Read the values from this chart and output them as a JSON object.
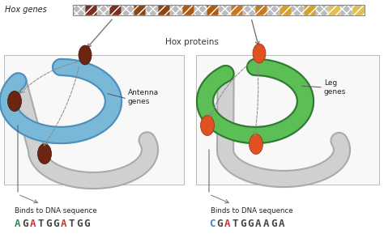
{
  "hox_label": "Hox genes",
  "hox_proteins_label": "Hox proteins",
  "left_label": "Antenna\ngenes",
  "right_label": "Leg\ngenes",
  "left_binds": "Binds to DNA sequence",
  "right_binds": "Binds to DNA sequence",
  "left_seq": [
    {
      "char": "A",
      "color": "#2E8B57"
    },
    {
      "char": "G",
      "color": "#444444"
    },
    {
      "char": "A",
      "color": "#CC3333"
    },
    {
      "char": "T",
      "color": "#444444"
    },
    {
      "char": "G",
      "color": "#444444"
    },
    {
      "char": "G",
      "color": "#444444"
    },
    {
      "char": "A",
      "color": "#CC3333"
    },
    {
      "char": "T",
      "color": "#444444"
    },
    {
      "char": "G",
      "color": "#444444"
    },
    {
      "char": "G",
      "color": "#444444"
    }
  ],
  "right_seq": [
    {
      "char": "C",
      "color": "#4080C0"
    },
    {
      "char": "G",
      "color": "#444444"
    },
    {
      "char": "A",
      "color": "#CC3333"
    },
    {
      "char": "T",
      "color": "#444444"
    },
    {
      "char": "G",
      "color": "#444444"
    },
    {
      "char": "G",
      "color": "#444444"
    },
    {
      "char": "A",
      "color": "#444444"
    },
    {
      "char": "A",
      "color": "#444444"
    },
    {
      "char": "G",
      "color": "#444444"
    },
    {
      "char": "A",
      "color": "#444444"
    }
  ],
  "hox_bar_colors": [
    "#BBBBBB",
    "#7A3020",
    "#BBBBBB",
    "#7A3020",
    "#BBBBBB",
    "#8B4513",
    "#BBBBBB",
    "#8B4513",
    "#BBBBBB",
    "#B05A10",
    "#BBBBBB",
    "#B05A10",
    "#BBBBBB",
    "#C87820",
    "#BBBBBB",
    "#C87820",
    "#BBBBBB",
    "#D4A030",
    "#BBBBBB",
    "#D4A030",
    "#BBBBBB",
    "#E0C050",
    "#BBBBBB",
    "#E0C050"
  ],
  "bg_color": "#FFFFFF",
  "gray_tube": "#D0D0D0",
  "gray_border": "#AAAAAA",
  "blue_tube": "#7AB8D8",
  "blue_border": "#4A90C0",
  "green_tube": "#5BBF55",
  "green_border": "#2E7A2E",
  "protein_left": "#6B2510",
  "protein_right": "#E05020"
}
